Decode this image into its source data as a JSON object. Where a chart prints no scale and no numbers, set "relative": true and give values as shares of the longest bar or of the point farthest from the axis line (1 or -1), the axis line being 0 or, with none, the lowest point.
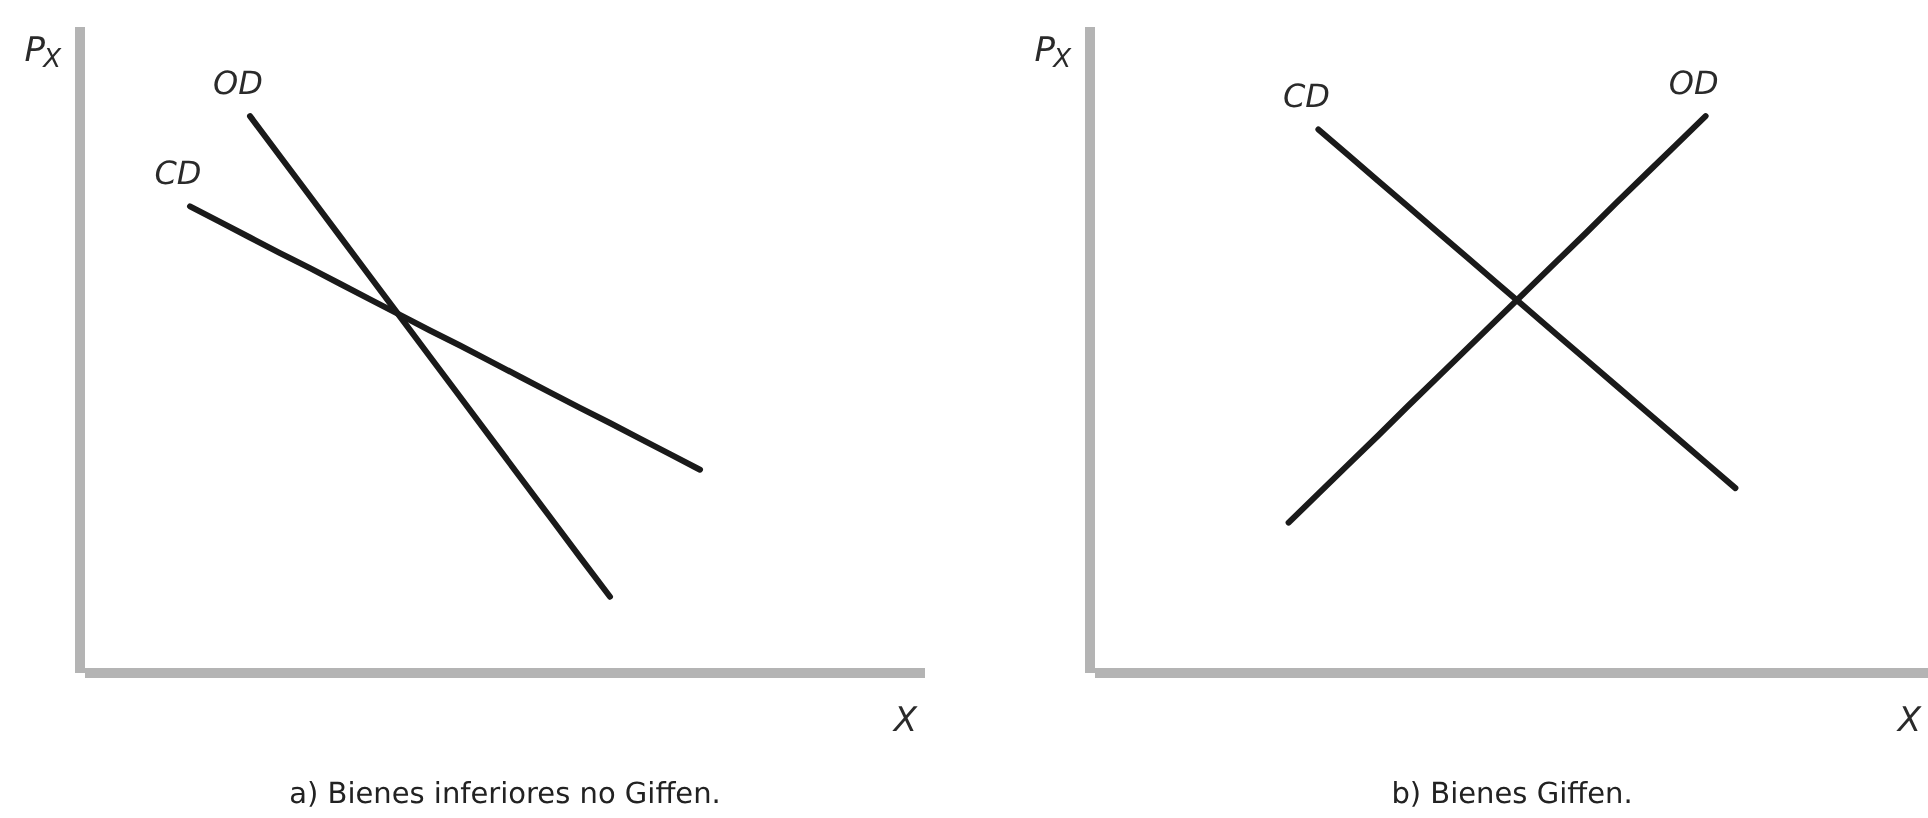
{
  "chart_data": [
    {
      "type": "line",
      "title": "a) Bienes inferiores no Giffen.",
      "xlabel": "X",
      "ylabel": "P$_{X}$",
      "relative": true,
      "categories": [
        null,
        null,
        null,
        null,
        null,
        null,
        null,
        null,
        null,
        null,
        null,
        null,
        null,
        null,
        null,
        null,
        null,
        null,
        null,
        null,
        null,
        null,
        null,
        null,
        null,
        null,
        null,
        null
      ],
      "series": [
        {
          "name": "OD",
          "color": "#1a1a1a",
          "values": [
            null,
            null,
            null,
            null,
            null,
            1,
            0.928,
            0.856,
            0.784,
            0.712,
            0.64,
            0.568,
            0.496,
            0.424,
            0.352,
            0.28,
            0.208,
            0.137,
            null,
            null,
            null,
            null,
            null,
            null,
            null,
            null,
            null,
            null
          ]
        },
        {
          "name": "CD",
          "color": "#1a1a1a",
          "values": [
            null,
            null,
            null,
            0.838,
            0.81,
            0.782,
            0.754,
            0.727,
            0.699,
            0.671,
            0.643,
            0.615,
            0.588,
            0.56,
            0.532,
            0.504,
            0.476,
            0.449,
            0.421,
            0.393,
            0.365,
            null,
            null,
            null,
            null,
            null,
            null,
            null
          ]
        }
      ]
    },
    {
      "type": "line",
      "title": "b) Bienes Giffen.",
      "xlabel": "X",
      "ylabel": "P$_{X}$",
      "relative": true,
      "categories": [
        null,
        null,
        null,
        null,
        null,
        null,
        null,
        null,
        null,
        null,
        null,
        null,
        null,
        null,
        null,
        null,
        null,
        null,
        null,
        null,
        null,
        null,
        null,
        null,
        null,
        null,
        null,
        null
      ],
      "series": [
        {
          "name": "CD",
          "color": "#1a1a1a",
          "values": [
            null,
            null,
            null,
            null,
            null,
            null,
            null,
            0.976,
            0.93,
            0.884,
            0.838,
            0.792,
            0.746,
            0.7,
            0.654,
            0.608,
            0.562,
            0.516,
            0.47,
            0.424,
            0.378,
            0.332,
            null,
            null,
            null,
            null,
            null,
            null
          ]
        },
        {
          "name": "OD",
          "color": "#1a1a1a",
          "values": [
            null,
            null,
            null,
            null,
            null,
            null,
            0.27,
            0.322,
            0.374,
            0.426,
            0.479,
            0.531,
            0.583,
            0.635,
            0.687,
            0.739,
            0.791,
            0.844,
            0.896,
            0.948,
            1,
            null,
            null,
            null,
            null,
            null,
            null,
            null
          ]
        }
      ]
    }
  ]
}
